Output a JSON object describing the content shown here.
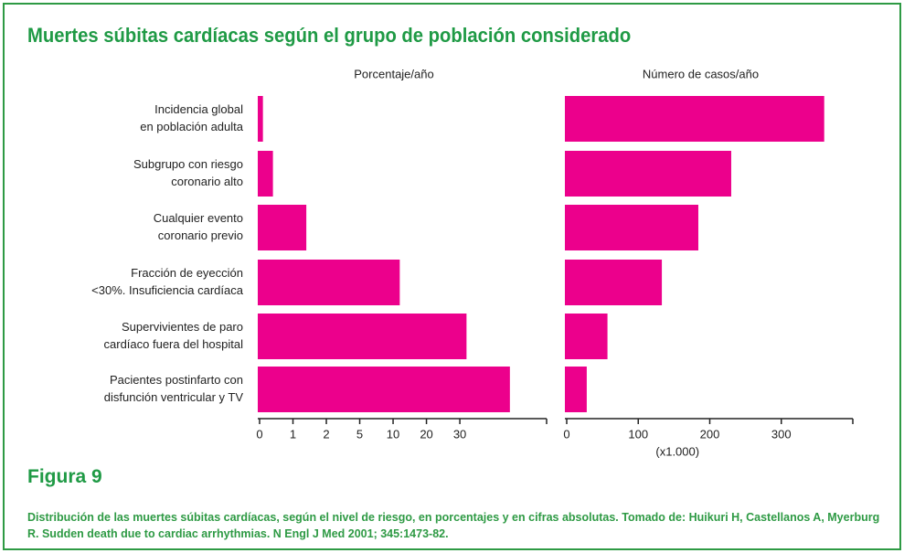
{
  "title": "Muertes súbitas cardíacas según el grupo de población considerado",
  "figure_label": "Figura 9",
  "caption": "Distribución de las muertes súbitas cardíacas, según el nivel de riesgo, en porcentajes y en cifras absolutas. Tomado de: Huikuri H, Castellanos A, Myerburg R. Sudden death due to cardiac arrhythmias. N Engl J Med 2001; 345:1473-82.",
  "chart_data": [
    {
      "type": "bar",
      "orientation": "horizontal",
      "title": "Porcentaje/año",
      "categories": [
        [
          "Incidencia global",
          "en población adulta"
        ],
        [
          "Subgrupo con riesgo",
          "coronario alto"
        ],
        [
          "Cualquier evento",
          "coronario previo"
        ],
        [
          "Fracción de eyección",
          "<30%. Insuficiencia cardíaca"
        ],
        [
          "Supervivientes de paro",
          "cardíaco fuera del hospital"
        ],
        [
          "Pacientes postinfarto con",
          "disfunción ventricular y TV"
        ]
      ],
      "values": [
        0.1,
        0.4,
        1.4,
        12,
        32,
        45
      ],
      "color": "#ec008c",
      "xlim": [
        0,
        56
      ],
      "xticks": [
        0,
        1,
        2,
        5,
        10,
        20,
        30
      ],
      "scale": "piecewise"
    },
    {
      "type": "bar",
      "orientation": "horizontal",
      "title": "Número de casos/año",
      "xlabel": "(x1.000)",
      "values": [
        360,
        230,
        184,
        133,
        57,
        28
      ],
      "color": "#ec008c",
      "xlim": [
        0,
        400
      ],
      "xticks": [
        0,
        100,
        200,
        300
      ],
      "scale": "linear"
    }
  ]
}
